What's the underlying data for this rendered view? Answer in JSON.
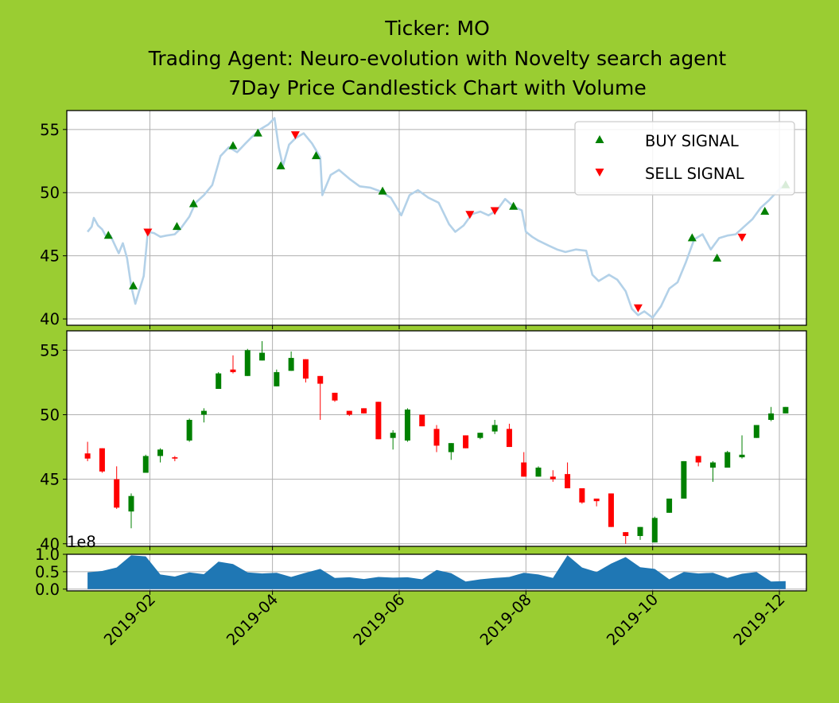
{
  "figure": {
    "background": "#9acd32",
    "title_lines": [
      "Ticker: MO",
      "Trading Agent: Neuro-evolution with Novelty search agent",
      "7Day Price Candlestick Chart with Volume"
    ]
  },
  "legend": {
    "placement": "top-right",
    "buy_label": "BUY SIGNAL",
    "sell_label": "SELL SIGNAL"
  },
  "colors": {
    "price_line": "#b3d1e8",
    "buy": "#008000",
    "sell": "#ff0000",
    "up_candle": "#008000",
    "down_candle": "#ff0000",
    "volume": "#1f77b4"
  },
  "chart_data": [
    {
      "type": "line",
      "name": "price",
      "ylim": [
        39.5,
        56.5
      ],
      "yticks": [
        40,
        45,
        50,
        55
      ],
      "grid": true,
      "points": [
        [
          "2019-01-02",
          46.9
        ],
        [
          "2019-01-04",
          47.3
        ],
        [
          "2019-01-05",
          48.0
        ],
        [
          "2019-01-07",
          47.4
        ],
        [
          "2019-01-09",
          47.1
        ],
        [
          "2019-01-11",
          46.5
        ],
        [
          "2019-01-13",
          46.6
        ],
        [
          "2019-01-15",
          45.9
        ],
        [
          "2019-01-17",
          45.2
        ],
        [
          "2019-01-19",
          46.0
        ],
        [
          "2019-01-21",
          44.8
        ],
        [
          "2019-01-23",
          42.6
        ],
        [
          "2019-01-25",
          41.2
        ],
        [
          "2019-01-27",
          42.3
        ],
        [
          "2019-01-29",
          43.4
        ],
        [
          "2019-01-31",
          46.9
        ],
        [
          "2019-02-03",
          46.8
        ],
        [
          "2019-02-06",
          46.5
        ],
        [
          "2019-02-09",
          46.6
        ],
        [
          "2019-02-13",
          46.7
        ],
        [
          "2019-02-16",
          47.2
        ],
        [
          "2019-02-20",
          48.1
        ],
        [
          "2019-02-23",
          49.2
        ],
        [
          "2019-02-27",
          49.8
        ],
        [
          "2019-03-03",
          50.6
        ],
        [
          "2019-03-07",
          52.9
        ],
        [
          "2019-03-11",
          53.6
        ],
        [
          "2019-03-15",
          53.2
        ],
        [
          "2019-03-19",
          53.9
        ],
        [
          "2019-03-22",
          54.4
        ],
        [
          "2019-03-26",
          55.0
        ],
        [
          "2019-03-30",
          55.4
        ],
        [
          "2019-04-02",
          55.9
        ],
        [
          "2019-04-04",
          53.6
        ],
        [
          "2019-04-06",
          52.1
        ],
        [
          "2019-04-09",
          53.8
        ],
        [
          "2019-04-12",
          54.3
        ],
        [
          "2019-04-16",
          54.7
        ],
        [
          "2019-04-20",
          53.9
        ],
        [
          "2019-04-24",
          52.8
        ],
        [
          "2019-04-25",
          49.8
        ],
        [
          "2019-04-29",
          51.4
        ],
        [
          "2019-05-03",
          51.8
        ],
        [
          "2019-05-08",
          51.1
        ],
        [
          "2019-05-13",
          50.5
        ],
        [
          "2019-05-18",
          50.4
        ],
        [
          "2019-05-23",
          50.1
        ],
        [
          "2019-05-28",
          49.6
        ],
        [
          "2019-06-02",
          48.2
        ],
        [
          "2019-06-06",
          49.8
        ],
        [
          "2019-06-10",
          50.2
        ],
        [
          "2019-06-15",
          49.6
        ],
        [
          "2019-06-20",
          49.2
        ],
        [
          "2019-06-25",
          47.5
        ],
        [
          "2019-06-28",
          46.9
        ],
        [
          "2019-07-02",
          47.4
        ],
        [
          "2019-07-06",
          48.3
        ],
        [
          "2019-07-10",
          48.5
        ],
        [
          "2019-07-14",
          48.2
        ],
        [
          "2019-07-18",
          48.6
        ],
        [
          "2019-07-22",
          49.5
        ],
        [
          "2019-07-26",
          48.9
        ],
        [
          "2019-07-30",
          48.6
        ],
        [
          "2019-08-01",
          46.9
        ],
        [
          "2019-08-04",
          46.5
        ],
        [
          "2019-08-07",
          46.2
        ],
        [
          "2019-08-12",
          45.8
        ],
        [
          "2019-08-16",
          45.5
        ],
        [
          "2019-08-20",
          45.3
        ],
        [
          "2019-08-25",
          45.5
        ],
        [
          "2019-08-30",
          45.4
        ],
        [
          "2019-09-02",
          43.5
        ],
        [
          "2019-09-05",
          43.0
        ],
        [
          "2019-09-10",
          43.5
        ],
        [
          "2019-09-14",
          43.1
        ],
        [
          "2019-09-18",
          42.2
        ],
        [
          "2019-09-21",
          40.8
        ],
        [
          "2019-09-24",
          40.3
        ],
        [
          "2019-09-27",
          40.6
        ],
        [
          "2019-10-01",
          40.1
        ],
        [
          "2019-10-05",
          41.0
        ],
        [
          "2019-10-09",
          42.4
        ],
        [
          "2019-10-13",
          42.9
        ],
        [
          "2019-10-17",
          44.5
        ],
        [
          "2019-10-21",
          46.3
        ],
        [
          "2019-10-25",
          46.7
        ],
        [
          "2019-10-29",
          45.5
        ],
        [
          "2019-11-02",
          46.4
        ],
        [
          "2019-11-06",
          46.6
        ],
        [
          "2019-11-10",
          46.7
        ],
        [
          "2019-11-14",
          47.3
        ],
        [
          "2019-11-18",
          47.9
        ],
        [
          "2019-11-22",
          48.8
        ],
        [
          "2019-11-26",
          49.4
        ],
        [
          "2019-11-30",
          50.1
        ],
        [
          "2019-12-03",
          50.6
        ]
      ],
      "buy_signals": [
        [
          "2019-01-12",
          46.6
        ],
        [
          "2019-01-24",
          42.6
        ],
        [
          "2019-02-14",
          47.3
        ],
        [
          "2019-02-22",
          49.1
        ],
        [
          "2019-03-13",
          53.7
        ],
        [
          "2019-03-25",
          54.7
        ],
        [
          "2019-04-05",
          52.1
        ],
        [
          "2019-04-22",
          52.9
        ],
        [
          "2019-05-24",
          50.1
        ],
        [
          "2019-07-26",
          48.9
        ],
        [
          "2019-10-20",
          46.4
        ],
        [
          "2019-11-01",
          44.8
        ],
        [
          "2019-11-24",
          48.5
        ],
        [
          "2019-12-04",
          50.6
        ]
      ],
      "sell_signals": [
        [
          "2019-01-31",
          46.9
        ],
        [
          "2019-04-12",
          54.6
        ],
        [
          "2019-07-05",
          48.3
        ],
        [
          "2019-07-17",
          48.6
        ],
        [
          "2019-09-24",
          40.9
        ],
        [
          "2019-11-13",
          46.5
        ]
      ]
    },
    {
      "type": "candlestick",
      "name": "7-day candles",
      "ylim": [
        39.8,
        56.5
      ],
      "yticks": [
        40,
        45,
        50,
        55
      ],
      "grid": true,
      "candles": [
        [
          "2019-01-02",
          47.0,
          47.9,
          46.4,
          46.6
        ],
        [
          "2019-01-09",
          47.4,
          47.4,
          45.5,
          45.6
        ],
        [
          "2019-01-16",
          45.0,
          46.0,
          42.7,
          42.8
        ],
        [
          "2019-01-23",
          42.5,
          43.9,
          41.2,
          43.7
        ],
        [
          "2019-01-30",
          45.5,
          46.9,
          45.5,
          46.8
        ],
        [
          "2019-02-06",
          46.8,
          47.4,
          46.3,
          47.3
        ],
        [
          "2019-02-13",
          46.7,
          46.8,
          46.4,
          46.6
        ],
        [
          "2019-02-20",
          48.0,
          49.7,
          47.9,
          49.6
        ],
        [
          "2019-02-27",
          50.0,
          50.5,
          49.4,
          50.3
        ],
        [
          "2019-03-06",
          52.0,
          53.3,
          52.0,
          53.2
        ],
        [
          "2019-03-13",
          53.5,
          54.6,
          53.2,
          53.3
        ],
        [
          "2019-03-20",
          53.0,
          55.1,
          53.0,
          55.0
        ],
        [
          "2019-03-27",
          54.2,
          55.7,
          54.2,
          54.8
        ],
        [
          "2019-04-03",
          52.2,
          53.5,
          52.2,
          53.3
        ],
        [
          "2019-04-10",
          53.4,
          54.9,
          53.4,
          54.4
        ],
        [
          "2019-04-17",
          54.3,
          54.3,
          52.5,
          52.8
        ],
        [
          "2019-04-24",
          53.0,
          53.0,
          49.6,
          52.4
        ],
        [
          "2019-05-01",
          51.7,
          51.7,
          51.0,
          51.1
        ],
        [
          "2019-05-08",
          50.3,
          50.3,
          49.9,
          50.0
        ],
        [
          "2019-05-15",
          50.5,
          50.5,
          50.1,
          50.1
        ],
        [
          "2019-05-22",
          51.0,
          51.0,
          48.1,
          48.1
        ],
        [
          "2019-05-29",
          48.2,
          48.8,
          47.3,
          48.6
        ],
        [
          "2019-06-05",
          48.0,
          50.5,
          47.9,
          50.4
        ],
        [
          "2019-06-12",
          50.0,
          50.0,
          49.1,
          49.1
        ],
        [
          "2019-06-19",
          48.9,
          49.2,
          47.1,
          47.6
        ],
        [
          "2019-06-26",
          47.1,
          47.8,
          46.5,
          47.8
        ],
        [
          "2019-07-03",
          48.4,
          48.4,
          47.4,
          47.4
        ],
        [
          "2019-07-10",
          48.2,
          48.6,
          48.1,
          48.6
        ],
        [
          "2019-07-17",
          48.7,
          49.6,
          48.5,
          49.2
        ],
        [
          "2019-07-24",
          48.9,
          49.3,
          47.5,
          47.5
        ],
        [
          "2019-07-31",
          46.3,
          47.1,
          45.2,
          45.2
        ],
        [
          "2019-08-07",
          45.2,
          46.0,
          45.2,
          45.9
        ],
        [
          "2019-08-14",
          45.2,
          45.7,
          44.8,
          45.0
        ],
        [
          "2019-08-21",
          45.4,
          46.3,
          44.3,
          44.3
        ],
        [
          "2019-08-28",
          44.3,
          44.3,
          43.1,
          43.2
        ],
        [
          "2019-09-04",
          43.5,
          43.5,
          42.9,
          43.3
        ],
        [
          "2019-09-11",
          43.9,
          43.9,
          41.3,
          41.3
        ],
        [
          "2019-09-18",
          40.9,
          40.9,
          40.0,
          40.6
        ],
        [
          "2019-09-25",
          40.6,
          41.3,
          40.3,
          41.3
        ],
        [
          "2019-10-02",
          40.1,
          42.1,
          40.1,
          42.0
        ],
        [
          "2019-10-09",
          42.4,
          43.5,
          42.4,
          43.5
        ],
        [
          "2019-10-16",
          43.5,
          46.4,
          43.5,
          46.4
        ],
        [
          "2019-10-23",
          46.8,
          46.8,
          46.0,
          46.3
        ],
        [
          "2019-10-30",
          45.9,
          46.4,
          44.8,
          46.3
        ],
        [
          "2019-11-06",
          45.9,
          47.2,
          45.9,
          47.1
        ],
        [
          "2019-11-13",
          46.7,
          48.4,
          46.6,
          46.9
        ],
        [
          "2019-11-20",
          48.2,
          49.2,
          48.2,
          49.2
        ],
        [
          "2019-11-27",
          49.6,
          50.6,
          49.5,
          50.1
        ],
        [
          "2019-12-04",
          50.1,
          50.6,
          50.1,
          50.6
        ]
      ]
    },
    {
      "type": "area",
      "name": "volume",
      "ylim": [
        -0.05,
        1.0
      ],
      "yticks": [
        0.0,
        0.5,
        1.0
      ],
      "ytick_labels": [
        "0.0",
        "0.5",
        "1.0"
      ],
      "offset_text": "1e8",
      "grid": true,
      "x_ticks": [
        "2019-02",
        "2019-04",
        "2019-06",
        "2019-08",
        "2019-10",
        "2019-12"
      ],
      "points": [
        [
          "2019-01-02",
          0.48
        ],
        [
          "2019-01-09",
          0.52
        ],
        [
          "2019-01-16",
          0.62
        ],
        [
          "2019-01-23",
          0.97
        ],
        [
          "2019-01-30",
          0.94
        ],
        [
          "2019-02-06",
          0.42
        ],
        [
          "2019-02-13",
          0.36
        ],
        [
          "2019-02-20",
          0.48
        ],
        [
          "2019-02-27",
          0.43
        ],
        [
          "2019-03-06",
          0.79
        ],
        [
          "2019-03-13",
          0.72
        ],
        [
          "2019-03-20",
          0.48
        ],
        [
          "2019-03-27",
          0.45
        ],
        [
          "2019-04-03",
          0.47
        ],
        [
          "2019-04-10",
          0.35
        ],
        [
          "2019-04-17",
          0.47
        ],
        [
          "2019-04-24",
          0.58
        ],
        [
          "2019-05-01",
          0.32
        ],
        [
          "2019-05-08",
          0.34
        ],
        [
          "2019-05-15",
          0.29
        ],
        [
          "2019-05-22",
          0.35
        ],
        [
          "2019-05-29",
          0.33
        ],
        [
          "2019-06-05",
          0.34
        ],
        [
          "2019-06-12",
          0.28
        ],
        [
          "2019-06-19",
          0.55
        ],
        [
          "2019-06-26",
          0.46
        ],
        [
          "2019-07-03",
          0.22
        ],
        [
          "2019-07-10",
          0.28
        ],
        [
          "2019-07-17",
          0.32
        ],
        [
          "2019-07-24",
          0.35
        ],
        [
          "2019-07-31",
          0.47
        ],
        [
          "2019-08-07",
          0.42
        ],
        [
          "2019-08-14",
          0.32
        ],
        [
          "2019-08-21",
          0.97
        ],
        [
          "2019-08-28",
          0.62
        ],
        [
          "2019-09-04",
          0.49
        ],
        [
          "2019-09-11",
          0.73
        ],
        [
          "2019-09-18",
          0.92
        ],
        [
          "2019-09-25",
          0.63
        ],
        [
          "2019-10-02",
          0.58
        ],
        [
          "2019-10-09",
          0.28
        ],
        [
          "2019-10-16",
          0.49
        ],
        [
          "2019-10-23",
          0.45
        ],
        [
          "2019-10-30",
          0.47
        ],
        [
          "2019-11-06",
          0.32
        ],
        [
          "2019-11-13",
          0.44
        ],
        [
          "2019-11-20",
          0.49
        ],
        [
          "2019-11-27",
          0.22
        ],
        [
          "2019-12-04",
          0.23
        ]
      ]
    }
  ]
}
